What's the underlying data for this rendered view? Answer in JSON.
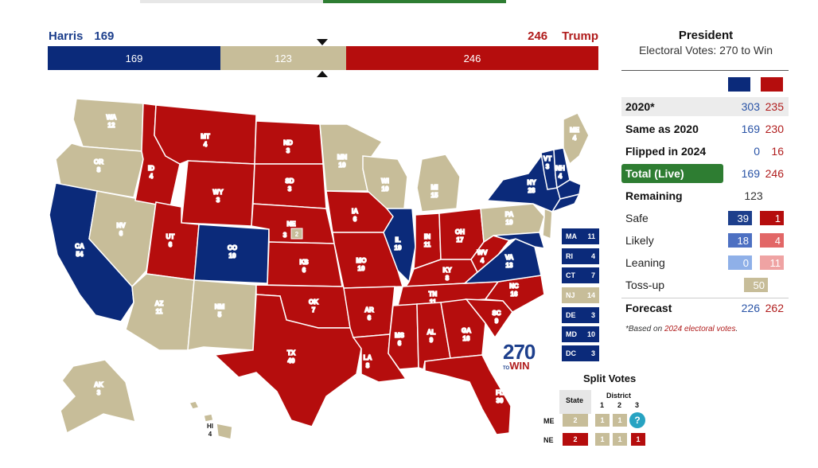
{
  "header": {
    "dem_name": "Harris",
    "dem_votes": "169",
    "rep_name": "Trump",
    "rep_votes": "246"
  },
  "bar": {
    "dem": "169",
    "tossup": "123",
    "rep": "246"
  },
  "colors": {
    "dem": "#0b2a7a",
    "rep": "#b50d0d",
    "tossup": "#c7bd99",
    "green": "#2e7d32"
  },
  "states": [
    {
      "abbr": "WA",
      "ev": "12"
    },
    {
      "abbr": "OR",
      "ev": "8"
    },
    {
      "abbr": "CA",
      "ev": "54"
    },
    {
      "abbr": "NV",
      "ev": "6"
    },
    {
      "abbr": "ID",
      "ev": "4"
    },
    {
      "abbr": "MT",
      "ev": "4"
    },
    {
      "abbr": "WY",
      "ev": "3"
    },
    {
      "abbr": "UT",
      "ev": "6"
    },
    {
      "abbr": "CO",
      "ev": "10"
    },
    {
      "abbr": "AZ",
      "ev": "11"
    },
    {
      "abbr": "NM",
      "ev": "5"
    },
    {
      "abbr": "ND",
      "ev": "3"
    },
    {
      "abbr": "SD",
      "ev": "3"
    },
    {
      "abbr": "NE",
      "ev": "3"
    },
    {
      "abbr": "KS",
      "ev": "6"
    },
    {
      "abbr": "OK",
      "ev": "7"
    },
    {
      "abbr": "TX",
      "ev": "40"
    },
    {
      "abbr": "MN",
      "ev": "10"
    },
    {
      "abbr": "IA",
      "ev": "6"
    },
    {
      "abbr": "MO",
      "ev": "10"
    },
    {
      "abbr": "AR",
      "ev": "6"
    },
    {
      "abbr": "LA",
      "ev": "8"
    },
    {
      "abbr": "WI",
      "ev": "10"
    },
    {
      "abbr": "IL",
      "ev": "19"
    },
    {
      "abbr": "MI",
      "ev": "15"
    },
    {
      "abbr": "IN",
      "ev": "11"
    },
    {
      "abbr": "OH",
      "ev": "17"
    },
    {
      "abbr": "KY",
      "ev": "8"
    },
    {
      "abbr": "TN",
      "ev": "11"
    },
    {
      "abbr": "MS",
      "ev": "6"
    },
    {
      "abbr": "AL",
      "ev": "9"
    },
    {
      "abbr": "GA",
      "ev": "16"
    },
    {
      "abbr": "FL",
      "ev": "30"
    },
    {
      "abbr": "SC",
      "ev": "9"
    },
    {
      "abbr": "NC",
      "ev": "16"
    },
    {
      "abbr": "VA",
      "ev": "13"
    },
    {
      "abbr": "WV",
      "ev": "4"
    },
    {
      "abbr": "PA",
      "ev": "19"
    },
    {
      "abbr": "NY",
      "ev": "28"
    },
    {
      "abbr": "VT",
      "ev": "3"
    },
    {
      "abbr": "NH",
      "ev": "4"
    },
    {
      "abbr": "ME",
      "ev": "4"
    },
    {
      "abbr": "AK",
      "ev": "3"
    },
    {
      "abbr": "HI",
      "ev": "4"
    }
  ],
  "ne_district": "2",
  "small_states": [
    {
      "abbr": "MA",
      "ev": "11",
      "party": "dem"
    },
    {
      "abbr": "RI",
      "ev": "4",
      "party": "dem"
    },
    {
      "abbr": "CT",
      "ev": "7",
      "party": "dem"
    },
    {
      "abbr": "NJ",
      "ev": "14",
      "party": "tossup"
    },
    {
      "abbr": "DE",
      "ev": "3",
      "party": "dem"
    },
    {
      "abbr": "MD",
      "ev": "10",
      "party": "dem"
    },
    {
      "abbr": "DC",
      "ev": "3",
      "party": "dem"
    }
  ],
  "logo": {
    "number": "270",
    "to": "TO",
    "win": "WIN"
  },
  "split_votes": {
    "title": "Split Votes",
    "state_header": "State",
    "district_header": "District",
    "district_cols": [
      "1",
      "2",
      "3"
    ],
    "rows": [
      {
        "state": "ME",
        "state_value": "2",
        "districts": [
          "1",
          "1",
          "?"
        ]
      },
      {
        "state": "NE",
        "state_value": "2",
        "districts": [
          "1",
          "1",
          "1"
        ]
      }
    ]
  },
  "panel": {
    "title": "President",
    "subtitle": "Electoral Votes: 270 to Win",
    "rows": [
      {
        "label": "2020*",
        "dem": "303",
        "rep": "235"
      },
      {
        "label": "Same as 2020",
        "dem": "169",
        "rep": "230"
      },
      {
        "label": "Flipped in 2024",
        "dem": "0",
        "rep": "16"
      },
      {
        "label": "Total (Live)",
        "dem": "169",
        "rep": "246"
      }
    ],
    "remaining": {
      "label": "Remaining",
      "value": "123"
    },
    "ratings": [
      {
        "label": "Safe",
        "dem": "39",
        "rep": "1"
      },
      {
        "label": "Likely",
        "dem": "18",
        "rep": "4"
      },
      {
        "label": "Leaning",
        "dem": "0",
        "rep": "11"
      }
    ],
    "tossup": {
      "label": "Toss-up",
      "value": "50"
    },
    "forecast": {
      "label": "Forecast",
      "dem": "226",
      "rep": "262"
    },
    "note_prefix": "*Based on ",
    "note_link": "2024 electoral votes",
    "note_suffix": "."
  }
}
